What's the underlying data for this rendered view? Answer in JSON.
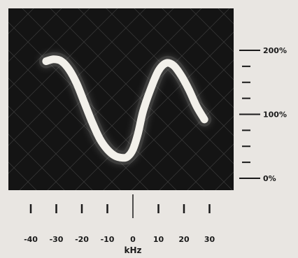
{
  "chart_data": {
    "type": "line",
    "title": "",
    "xlabel": "kHz",
    "ylabel": "",
    "x_ticks": [
      -40,
      -30,
      -20,
      -10,
      0,
      10,
      20,
      30
    ],
    "x_tick_labels": [
      "-40",
      "-30",
      "-20",
      "-10",
      "0",
      "10",
      "20",
      "30"
    ],
    "xlim": [
      -45,
      35
    ],
    "ylim": [
      0,
      200
    ],
    "y_tick_labels": [
      "200%",
      "100%",
      "0%"
    ],
    "y_tick_values": [
      200,
      100,
      0
    ],
    "y_minor_ticks": [
      25,
      50,
      75,
      125,
      150,
      175
    ],
    "grid": "diagonal crosshatch",
    "screen_color": "#141414",
    "trace_color": "#f2f0ea",
    "series": [
      {
        "x": [
          -34,
          -31,
          -28,
          -25,
          -22,
          -19,
          -16,
          -13,
          -10,
          -7,
          -4,
          -2,
          0,
          2,
          4,
          7,
          10,
          13,
          16,
          19,
          22,
          25,
          28
        ],
        "y": [
          183,
          186,
          183,
          170,
          148,
          118,
          88,
          62,
          45,
          35,
          32,
          34,
          45,
          70,
          105,
          140,
          168,
          180,
          176,
          160,
          138,
          112,
          92
        ]
      }
    ]
  }
}
